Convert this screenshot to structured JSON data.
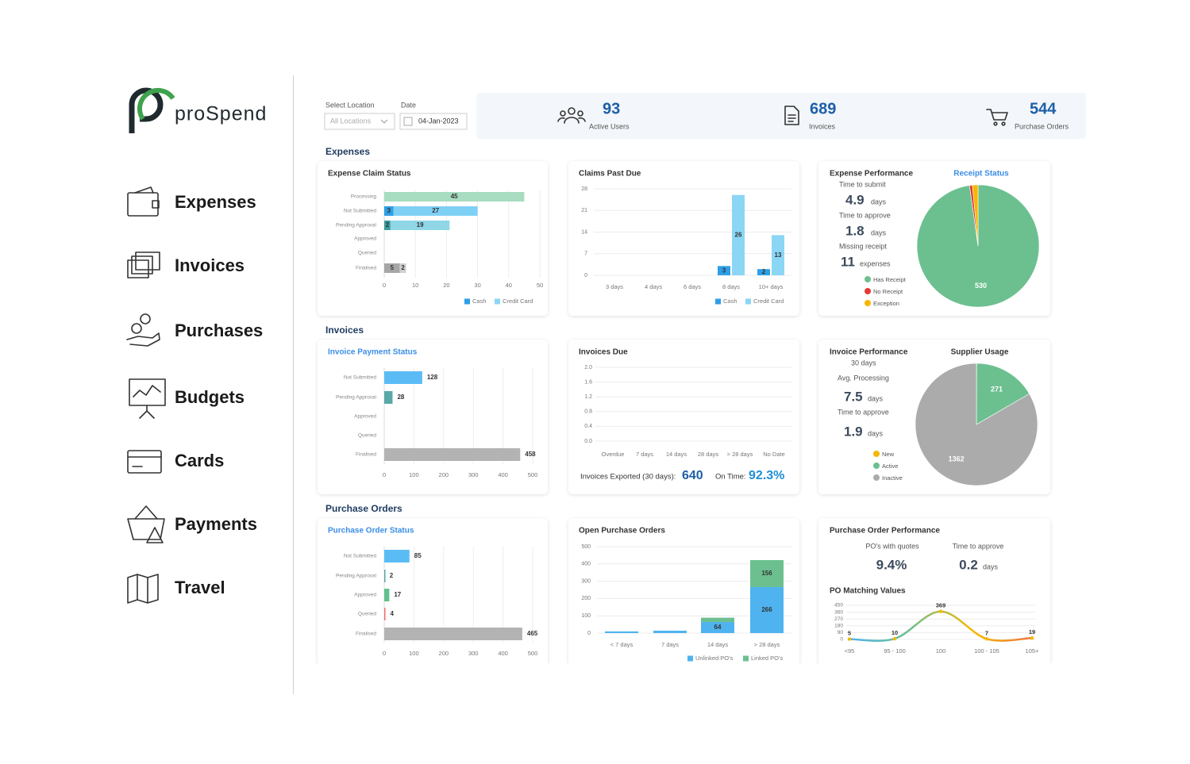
{
  "sidebar": {
    "logo": "proSpend",
    "menu": [
      "Expenses",
      "Invoices",
      "Purchases",
      "Budgets",
      "Cards",
      "Payments",
      "Travel"
    ]
  },
  "filters": {
    "location_label": "Select Location",
    "location": "All Locations",
    "date_label": "Date",
    "date": "04-Jan-2023"
  },
  "kpis": [
    {
      "value": "93",
      "label": "Active Users"
    },
    {
      "value": "689",
      "label": "Invoices"
    },
    {
      "value": "544",
      "label": "Purchase Orders"
    }
  ],
  "sections": [
    "Expenses",
    "Invoices",
    "Purchase Orders"
  ],
  "panels": {
    "expense_performance": {
      "title": "Expense Performance",
      "stats": [
        {
          "label": "Time to submit",
          "value": "4.9",
          "unit": "days"
        },
        {
          "label": "Time to approve",
          "value": "1.8",
          "unit": "days"
        },
        {
          "label": "Missing receipt",
          "value": "11",
          "unit": "expenses"
        }
      ]
    },
    "invoice_performance": {
      "title": "Invoice Performance",
      "period": "30 days",
      "stats": [
        {
          "label": "Avg. Processing",
          "value": "7.5",
          "unit": "days"
        },
        {
          "label": "Time to approve",
          "value": "1.9",
          "unit": "days"
        }
      ]
    },
    "invoices_due_footer": {
      "exported_label": "Invoices Exported (30 days):",
      "exported": "640",
      "on_time_label": "On Time:",
      "on_time": "92.3%"
    },
    "po_performance": {
      "title": "Purchase Order Performance",
      "stats": [
        {
          "label": "PO's with quotes",
          "value": "9.4%"
        },
        {
          "label": "Time to approve",
          "value": "0.2",
          "unit": "days"
        }
      ]
    }
  },
  "chart_data": [
    {
      "type": "hbar",
      "title": "Expense Claim Status",
      "title_color": "#333333",
      "categories": [
        "Processing",
        "Not Submitted",
        "Pending Approval",
        "Approved",
        "Queried",
        "Finalised"
      ],
      "series": [
        {
          "name": "Cash",
          "color": "#2e9fe6",
          "values": [
            null,
            3,
            2,
            null,
            null,
            5
          ],
          "colors": [
            null,
            "#2e9fe6",
            "#3d9c9c",
            null,
            null,
            "#a6a6a6"
          ]
        },
        {
          "name": "Credit Card",
          "color": "#8bd6f5",
          "values": [
            45,
            27,
            19,
            null,
            null,
            2
          ],
          "colors": [
            "#a8dcc0",
            "#7fd0f5",
            "#8fd6e6",
            null,
            null,
            "#cfcfcf"
          ]
        }
      ],
      "xlim": [
        0,
        50
      ],
      "xticks": [
        0,
        10,
        20,
        30,
        40,
        50
      ],
      "grid": true,
      "stacked": true
    },
    {
      "type": "bar",
      "title": "Claims Past Due",
      "title_color": "#333333",
      "categories": [
        "3 days",
        "4 days",
        "6 days",
        "8 days",
        "10+ days"
      ],
      "series": [
        {
          "name": "Cash",
          "color": "#2e9fe6",
          "values": [
            null,
            null,
            null,
            3,
            2
          ]
        },
        {
          "name": "Credit Card",
          "color": "#8bd6f5",
          "values": [
            null,
            null,
            null,
            26,
            13
          ]
        }
      ],
      "ylim": [
        0,
        28
      ],
      "yticks": [
        0,
        7,
        14,
        21,
        28
      ],
      "grid": true,
      "stacked": false
    },
    {
      "type": "pie",
      "title": "Receipt Status",
      "title_color": "#3a8ee6",
      "categories": [
        "Has Receipt",
        "No Receipt",
        "Exception"
      ],
      "values": [
        530,
        4,
        8
      ],
      "colors": [
        "#6cc090",
        "#e53935",
        "#f5b800"
      ]
    },
    {
      "type": "hbar",
      "title": "Invoice Payment Status",
      "title_color": "#3a8ee6",
      "categories": [
        "Not Submitted",
        "Pending Approval",
        "Approved",
        "Queried",
        "Finalised"
      ],
      "values": [
        128,
        28,
        null,
        null,
        458
      ],
      "colors": [
        "#5bbcf5",
        "#5aa8a8",
        null,
        null,
        "#b3b3b3"
      ],
      "xlim": [
        0,
        500
      ],
      "xticks": [
        0,
        100,
        200,
        300,
        400,
        500
      ],
      "grid": true
    },
    {
      "type": "line",
      "title": "Invoices Due",
      "title_color": "#333333",
      "categories": [
        "Overdue",
        "7 days",
        "14 days",
        "28 days",
        "> 28 days",
        "No Date"
      ],
      "ylim": [
        0,
        2
      ],
      "yticks": [
        {
          "value": 0,
          "label": "0.0"
        },
        0.4,
        0.8,
        1.2,
        1.6,
        {
          "value": 2,
          "label": "2.0"
        }
      ],
      "grid": true
    },
    {
      "type": "pie",
      "title": "Supplier Usage",
      "title_color": "#333333",
      "categories": [
        "New",
        "Active",
        "Inactive"
      ],
      "values": [
        1,
        271,
        1362
      ],
      "colors": [
        "#f5b800",
        "#6cc090",
        "#ababab"
      ]
    },
    {
      "type": "hbar",
      "title": "Purchase Order Status",
      "title_color": "#3a8ee6",
      "categories": [
        "Not Submitted",
        "Pending Approval",
        "Approved",
        "Queried",
        "Finalised"
      ],
      "values": [
        85,
        2,
        17,
        4,
        465
      ],
      "colors": [
        "#5bbcf5",
        "#5aa8a8",
        "#62c08c",
        "#f07070",
        "#b3b3b3"
      ],
      "xlim": [
        0,
        500
      ],
      "xticks": [
        0,
        100,
        200,
        300,
        400,
        500
      ],
      "grid": true
    },
    {
      "type": "bar",
      "title": "Open Purchase Orders",
      "title_color": "#333333",
      "categories": [
        "< 7 days",
        "7 days",
        "14 days",
        "> 28 days"
      ],
      "series": [
        {
          "name": "Unlinked PO's",
          "color": "#4fb3ef",
          "values": [
            10,
            14,
            64,
            266
          ]
        },
        {
          "name": "Linked PO's",
          "color": "#6cc090",
          "values": [
            null,
            null,
            25,
            156
          ]
        }
      ],
      "ylim": [
        0,
        500
      ],
      "yticks": [
        0,
        100,
        200,
        300,
        400,
        500
      ],
      "grid": true,
      "stacked": true
    },
    {
      "type": "line",
      "title": "PO Matching Values",
      "title_color": "#333333",
      "categories": [
        "<95",
        "95 - 100",
        "100",
        "100 - 105",
        "105+"
      ],
      "values": [
        5,
        10,
        369,
        7,
        19
      ],
      "colors": [
        "#4fb3ef",
        "#6cc090",
        "#f5b800",
        "#f07040"
      ],
      "marker_color": "#f5b800",
      "ylim": [
        0,
        450
      ],
      "yticks": [
        0,
        90,
        180,
        270,
        360,
        450
      ],
      "grid": true
    }
  ]
}
